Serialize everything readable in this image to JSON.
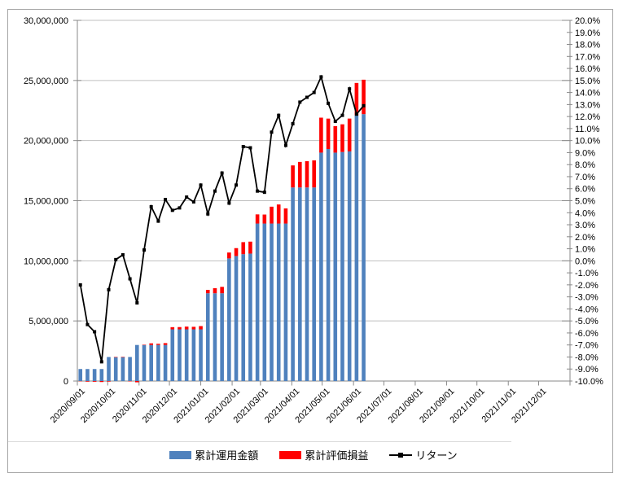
{
  "colors": {
    "bar_invest": "#4F81BD",
    "bar_profit": "#FF0000",
    "return_line": "#000000",
    "gridline": "#BFBFBF",
    "axis": "#898989",
    "frame_border": "#A6A6A6",
    "separator": "#D9D9D9"
  },
  "legend": {
    "items": [
      {
        "label": "累計運用金額",
        "kind": "bar"
      },
      {
        "label": "累計評価損益",
        "kind": "bar"
      },
      {
        "label": "リターン",
        "kind": "line"
      }
    ]
  },
  "chart_data": {
    "type": "bar",
    "subtype": "combo-stacked-bars-with-line",
    "title": "",
    "xlabel": "",
    "ylabel": "",
    "grid": true,
    "legend_position": "bottom",
    "y_left_axis": {
      "min": 0,
      "max": 30000000,
      "step": 5000000,
      "tick_labels": [
        "30,000,000",
        "25,000,000",
        "20,000,000",
        "15,000,000",
        "10,000,000",
        "5,000,000",
        "0"
      ]
    },
    "y_right_axis": {
      "min": -10,
      "max": 20,
      "step": 1,
      "tick_labels": [
        "20.0%",
        "19.0%",
        "18.0%",
        "17.0%",
        "16.0%",
        "15.0%",
        "14.0%",
        "13.0%",
        "12.0%",
        "11.0%",
        "10.0%",
        "9.0%",
        "8.0%",
        "7.0%",
        "6.0%",
        "5.0%",
        "4.0%",
        "3.0%",
        "2.0%",
        "1.0%",
        "0.0%",
        "-1.0%",
        "-2.0%",
        "-3.0%",
        "-4.0%",
        "-5.0%",
        "-6.0%",
        "-7.0%",
        "-8.0%",
        "-9.0%",
        "-10.0%"
      ]
    },
    "x_axis": {
      "range": [
        "2020/09/01",
        "2022/01/01"
      ],
      "tick_labels": [
        "2020/09/01",
        "2020/10/01",
        "2020/11/01",
        "2020/12/01",
        "2021/01/01",
        "2021/02/01",
        "2021/03/01",
        "2021/04/01",
        "2021/05/01",
        "2021/06/01",
        "2021/07/01",
        "2021/08/01",
        "2021/09/01",
        "2021/10/01",
        "2021/11/01",
        "2021/12/01"
      ]
    },
    "series": [
      {
        "name": "累計運用金額",
        "type": "bar",
        "axis": "left",
        "color": "#4F81BD"
      },
      {
        "name": "累計評価損益",
        "type": "bar",
        "axis": "left",
        "stacked": true,
        "color": "#FF0000"
      },
      {
        "name": "リターン",
        "type": "line",
        "axis": "right",
        "marker": "square",
        "color": "#000000"
      }
    ],
    "points": [
      {
        "date": "2020/09/04",
        "invest": 1000000,
        "profit": -20000,
        "return_pct": -2.0
      },
      {
        "date": "2020/09/11",
        "invest": 1000000,
        "profit": -53000,
        "return_pct": -5.3
      },
      {
        "date": "2020/09/18",
        "invest": 1000000,
        "profit": -59000,
        "return_pct": -5.9
      },
      {
        "date": "2020/09/25",
        "invest": 1000000,
        "profit": -84000,
        "return_pct": -8.4
      },
      {
        "date": "2020/10/02",
        "invest": 2000000,
        "profit": -48000,
        "return_pct": -2.4
      },
      {
        "date": "2020/10/09",
        "invest": 2000000,
        "profit": 2000,
        "return_pct": 0.1
      },
      {
        "date": "2020/10/16",
        "invest": 2000000,
        "profit": 10000,
        "return_pct": 0.5
      },
      {
        "date": "2020/10/23",
        "invest": 2000000,
        "profit": -30000,
        "return_pct": -1.5
      },
      {
        "date": "2020/10/30",
        "invest": 3000000,
        "profit": -105000,
        "return_pct": -3.5
      },
      {
        "date": "2020/11/06",
        "invest": 3000000,
        "profit": 27000,
        "return_pct": 0.9
      },
      {
        "date": "2020/11/13",
        "invest": 3000000,
        "profit": 135000,
        "return_pct": 4.5
      },
      {
        "date": "2020/11/20",
        "invest": 3000000,
        "profit": 99000,
        "return_pct": 3.3
      },
      {
        "date": "2020/11/27",
        "invest": 3000000,
        "profit": 153000,
        "return_pct": 5.1
      },
      {
        "date": "2020/12/04",
        "invest": 4300000,
        "profit": 181000,
        "return_pct": 4.2
      },
      {
        "date": "2020/12/11",
        "invest": 4300000,
        "profit": 189000,
        "return_pct": 4.4
      },
      {
        "date": "2020/12/18",
        "invest": 4300000,
        "profit": 228000,
        "return_pct": 5.3
      },
      {
        "date": "2020/12/25",
        "invest": 4300000,
        "profit": 211000,
        "return_pct": 4.9
      },
      {
        "date": "2021/01/01",
        "invest": 4300000,
        "profit": 271000,
        "return_pct": 6.3
      },
      {
        "date": "2021/01/08",
        "invest": 7300000,
        "profit": 285000,
        "return_pct": 3.9
      },
      {
        "date": "2021/01/15",
        "invest": 7300000,
        "profit": 423000,
        "return_pct": 5.8
      },
      {
        "date": "2021/01/22",
        "invest": 7300000,
        "profit": 533000,
        "return_pct": 7.3
      },
      {
        "date": "2021/01/29",
        "invest": 10200000,
        "profit": 490000,
        "return_pct": 4.8
      },
      {
        "date": "2021/02/05",
        "invest": 10400000,
        "profit": 655000,
        "return_pct": 6.3
      },
      {
        "date": "2021/02/12",
        "invest": 10550000,
        "profit": 1002000,
        "return_pct": 9.5
      },
      {
        "date": "2021/02/19",
        "invest": 10600000,
        "profit": 996000,
        "return_pct": 9.4
      },
      {
        "date": "2021/02/26",
        "invest": 13100000,
        "profit": 760000,
        "return_pct": 5.8
      },
      {
        "date": "2021/03/05",
        "invest": 13100000,
        "profit": 747000,
        "return_pct": 5.7
      },
      {
        "date": "2021/03/12",
        "invest": 13100000,
        "profit": 1402000,
        "return_pct": 10.7
      },
      {
        "date": "2021/03/19",
        "invest": 13100000,
        "profit": 1585000,
        "return_pct": 12.1
      },
      {
        "date": "2021/03/26",
        "invest": 13100000,
        "profit": 1258000,
        "return_pct": 9.6
      },
      {
        "date": "2021/04/02",
        "invest": 16100000,
        "profit": 1835000,
        "return_pct": 11.4
      },
      {
        "date": "2021/04/09",
        "invest": 16100000,
        "profit": 2125000,
        "return_pct": 13.2
      },
      {
        "date": "2021/04/16",
        "invest": 16100000,
        "profit": 2190000,
        "return_pct": 13.6
      },
      {
        "date": "2021/04/23",
        "invest": 16100000,
        "profit": 2254000,
        "return_pct": 14.0
      },
      {
        "date": "2021/04/30",
        "invest": 19000000,
        "profit": 2907000,
        "return_pct": 15.3
      },
      {
        "date": "2021/05/07",
        "invest": 19300000,
        "profit": 2528000,
        "return_pct": 13.1
      },
      {
        "date": "2021/05/14",
        "invest": 19000000,
        "profit": 2204000,
        "return_pct": 11.6
      },
      {
        "date": "2021/05/21",
        "invest": 19050000,
        "profit": 2305000,
        "return_pct": 12.1
      },
      {
        "date": "2021/05/28",
        "invest": 19100000,
        "profit": 2731000,
        "return_pct": 14.3
      },
      {
        "date": "2021/06/04",
        "invest": 22100000,
        "profit": 2696000,
        "return_pct": 12.2
      },
      {
        "date": "2021/06/11",
        "invest": 22200000,
        "profit": 2864000,
        "return_pct": 12.9
      }
    ]
  }
}
